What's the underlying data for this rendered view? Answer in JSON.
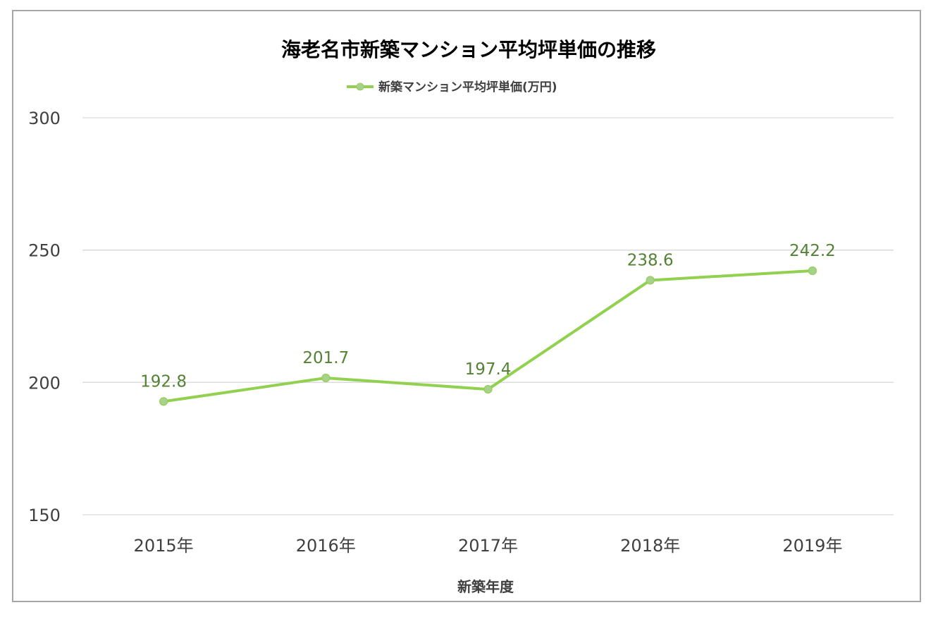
{
  "chart_data": {
    "type": "line",
    "title": "海老名市新築マンション平均坪単価の推移",
    "xlabel": "新築年度",
    "ylabel": "",
    "categories": [
      "2015年",
      "2016年",
      "2017年",
      "2018年",
      "2019年"
    ],
    "series": [
      {
        "name": "新築マンション平均坪単価(万円)",
        "values": [
          192.8,
          201.7,
          197.4,
          238.6,
          242.2
        ],
        "data_labels": [
          "192.8",
          "201.7",
          "197.4",
          "238.6",
          "242.2"
        ]
      }
    ],
    "ylim": [
      150,
      300
    ],
    "yticks": [
      150,
      200,
      250,
      300
    ],
    "ytick_labels": [
      "150",
      "200",
      "250",
      "300"
    ],
    "grid": true,
    "legend_position": "top",
    "colors": {
      "line": "#92d050",
      "marker": "#a9d18e",
      "data_label": "#548235",
      "grid": "#d9d9d9",
      "frame": "#a6a6a6"
    }
  }
}
